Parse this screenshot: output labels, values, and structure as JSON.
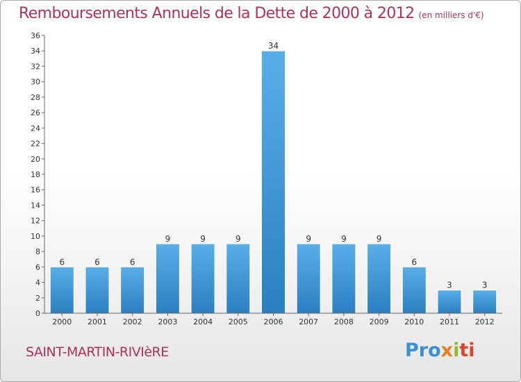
{
  "chart_title": "Remboursements Annuels de la Dette de 2000 à 2012",
  "chart_subtitle": "(en milliers d'€)",
  "town_name": "SAINT-MARTIN-RIVIèRE",
  "logo": {
    "parts": [
      "Pro",
      "x",
      "i",
      "ti"
    ]
  },
  "colors": {
    "title": "#b0305a",
    "bar_light": "#5aaee8",
    "bar_dark": "#2a7fc0",
    "logo_blue": "#3a8fd6",
    "logo_orange": "#e77e1f",
    "logo_green": "#8cbd2a",
    "logo_red": "#d9462b"
  },
  "chart_data": {
    "type": "bar",
    "title": "Remboursements Annuels de la Dette de 2000 à 2012",
    "subtitle": "(en milliers d'€)",
    "xlabel": "",
    "ylabel": "",
    "categories": [
      "2000",
      "2001",
      "2002",
      "2003",
      "2004",
      "2005",
      "2006",
      "2007",
      "2008",
      "2009",
      "2010",
      "2011",
      "2012"
    ],
    "values": [
      6,
      6,
      6,
      9,
      9,
      9,
      34,
      9,
      9,
      9,
      6,
      3,
      3
    ],
    "ylim": [
      0,
      36
    ],
    "yticks": [
      0,
      2,
      4,
      6,
      8,
      10,
      12,
      14,
      16,
      18,
      20,
      22,
      24,
      26,
      28,
      30,
      32,
      34,
      36
    ],
    "grid": false,
    "data_labels": true
  }
}
